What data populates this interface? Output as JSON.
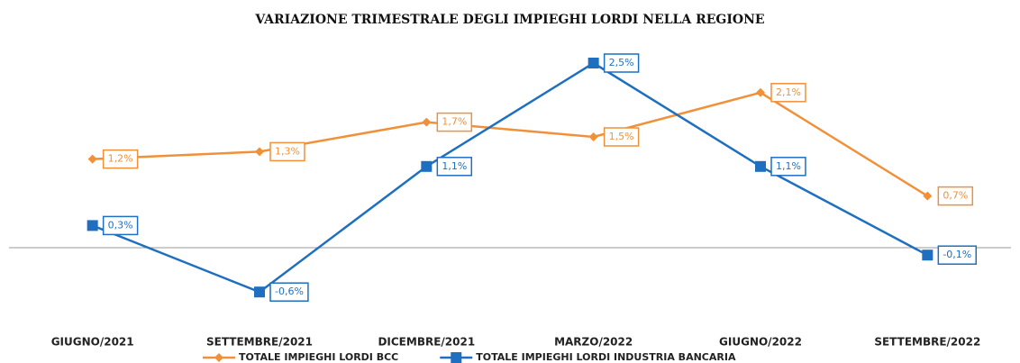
{
  "chart_data": {
    "type": "line",
    "title": "VARIAZIONE TRIMESTRALE DEGLI IMPIEGHI LORDI NELLA REGIONE",
    "categories": [
      "GIUGNO/2021",
      "SETTEMBRE/2021",
      "DICEMBRE/2021",
      "MARZO/2022",
      "GIUGNO/2022",
      "SETTEMBRE/2022"
    ],
    "series": [
      {
        "name": "TOTALE IMPIEGHI LORDI BCC",
        "color": "#f0913a",
        "marker": "diamond",
        "values": [
          1.2,
          1.3,
          1.7,
          1.5,
          2.1,
          0.7
        ],
        "value_labels": [
          "1,2%",
          "1,3%",
          "1,7%",
          "1,5%",
          "2,1%",
          "0,7%"
        ]
      },
      {
        "name": "TOTALE IMPIEGHI LORDI INDUSTRIA BANCARIA",
        "color": "#1f6fc0",
        "marker": "square",
        "values": [
          0.3,
          -0.6,
          1.1,
          2.5,
          1.1,
          -0.1
        ],
        "value_labels": [
          "0,3%",
          "-0,6%",
          "1,1%",
          "2,5%",
          "1,1%",
          "-0,1%"
        ]
      }
    ],
    "ylim": [
      -1,
      3
    ]
  }
}
